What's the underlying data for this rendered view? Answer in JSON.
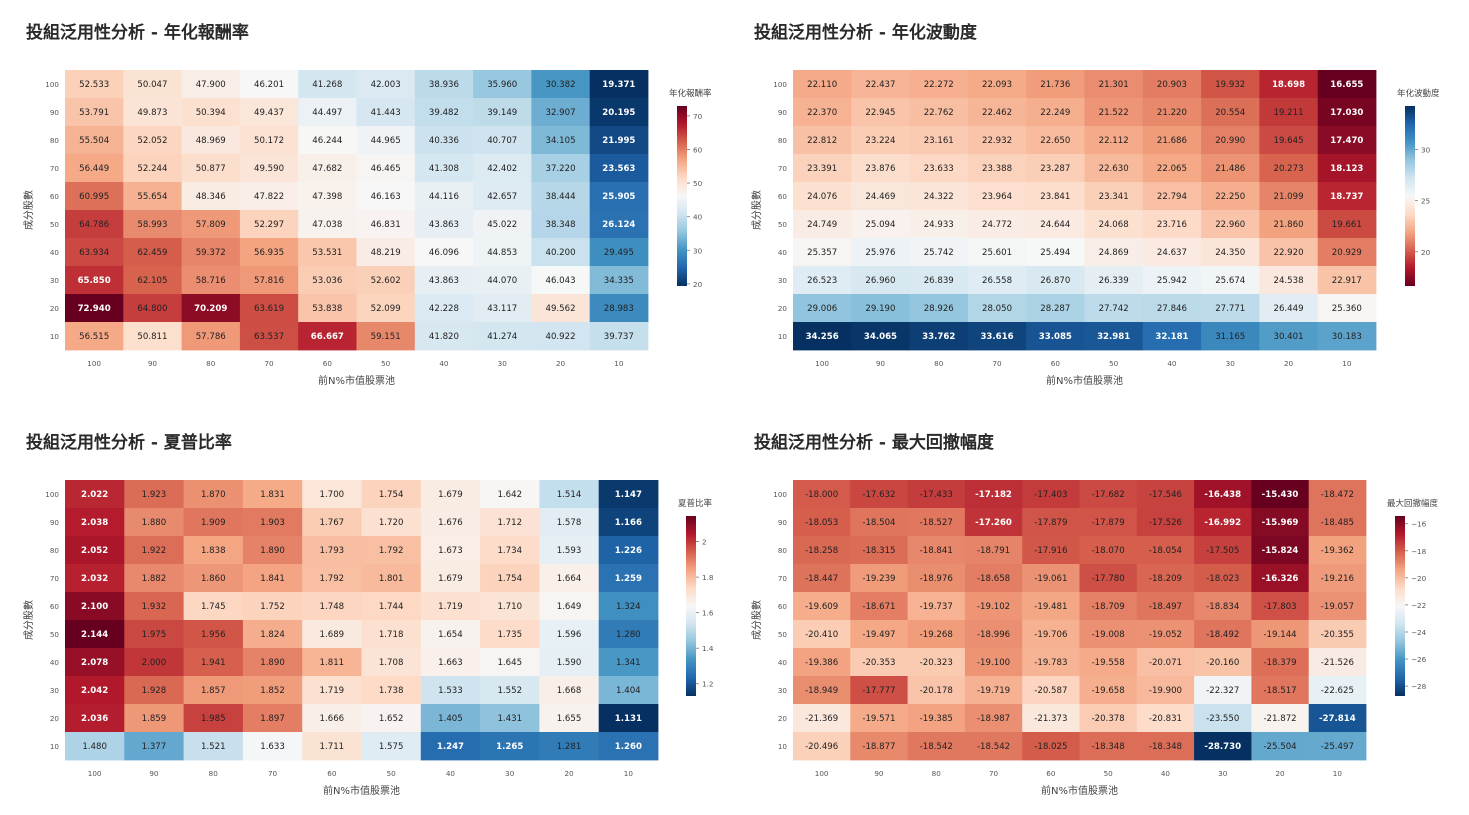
{
  "common": {
    "xlabel": "前N%市值股票池",
    "ylabel": "成分股數",
    "x_ticks": [
      "100",
      "90",
      "80",
      "70",
      "60",
      "50",
      "40",
      "30",
      "20",
      "10"
    ],
    "y_ticks": [
      "100",
      "90",
      "80",
      "70",
      "60",
      "50",
      "40",
      "30",
      "20",
      "10"
    ],
    "colors": {
      "low": "#053061",
      "mid": "#f7f7f7",
      "high": "#67001f"
    }
  },
  "chart_data": [
    {
      "type": "heatmap",
      "title": "投組泛用性分析 - 年化報酬率",
      "xlabel": "前N%市值股票池",
      "ylabel": "成分股數",
      "colorbar_title": "年化報酬率",
      "colorbar_ticks": [
        "70",
        "60",
        "50",
        "40",
        "30",
        "20"
      ],
      "colorscale": "red-high",
      "zrange": [
        19.371,
        72.94
      ],
      "values": [
        [
          "52.533",
          "50.047",
          "47.900",
          "46.201",
          "41.268",
          "42.003",
          "38.936",
          "35.960",
          "30.382",
          "19.371"
        ],
        [
          "53.791",
          "49.873",
          "50.394",
          "49.437",
          "44.497",
          "41.443",
          "39.482",
          "39.149",
          "32.907",
          "20.195"
        ],
        [
          "55.504",
          "52.052",
          "48.969",
          "50.172",
          "46.244",
          "44.965",
          "40.336",
          "40.707",
          "34.105",
          "21.995"
        ],
        [
          "56.449",
          "52.244",
          "50.877",
          "49.590",
          "47.682",
          "46.465",
          "41.308",
          "42.402",
          "37.220",
          "23.563"
        ],
        [
          "60.995",
          "55.654",
          "48.346",
          "47.822",
          "47.398",
          "46.163",
          "44.116",
          "42.657",
          "38.444",
          "25.905"
        ],
        [
          "64.786",
          "58.993",
          "57.809",
          "52.297",
          "47.038",
          "46.831",
          "43.863",
          "45.022",
          "38.348",
          "26.124"
        ],
        [
          "63.934",
          "62.459",
          "59.372",
          "56.935",
          "53.531",
          "48.219",
          "46.096",
          "44.853",
          "40.200",
          "29.495"
        ],
        [
          "65.850",
          "62.105",
          "58.716",
          "57.816",
          "53.036",
          "52.602",
          "43.863",
          "44.070",
          "46.043",
          "34.335"
        ],
        [
          "72.940",
          "64.800",
          "70.209",
          "63.619",
          "53.838",
          "52.099",
          "42.228",
          "43.117",
          "49.562",
          "28.983"
        ],
        [
          "56.515",
          "50.811",
          "57.786",
          "63.537",
          "66.667",
          "59.151",
          "41.820",
          "41.274",
          "40.922",
          "39.737"
        ]
      ]
    },
    {
      "type": "heatmap",
      "title": "投組泛用性分析 - 年化波動度",
      "xlabel": "前N%市值股票池",
      "ylabel": "成分股數",
      "colorbar_title": "年化波動度",
      "colorbar_ticks": [
        "30",
        "25",
        "20"
      ],
      "colorscale": "red-low",
      "zrange": [
        16.655,
        34.256
      ],
      "values": [
        [
          "22.110",
          "22.437",
          "22.272",
          "22.093",
          "21.736",
          "21.301",
          "20.903",
          "19.932",
          "18.698",
          "16.655"
        ],
        [
          "22.370",
          "22.945",
          "22.762",
          "22.462",
          "22.249",
          "21.522",
          "21.220",
          "20.554",
          "19.211",
          "17.030"
        ],
        [
          "22.812",
          "23.224",
          "23.161",
          "22.932",
          "22.650",
          "22.112",
          "21.686",
          "20.990",
          "19.645",
          "17.470"
        ],
        [
          "23.391",
          "23.876",
          "23.633",
          "23.388",
          "23.287",
          "22.630",
          "22.065",
          "21.486",
          "20.273",
          "18.123"
        ],
        [
          "24.076",
          "24.469",
          "24.322",
          "23.964",
          "23.841",
          "23.341",
          "22.794",
          "22.250",
          "21.099",
          "18.737"
        ],
        [
          "24.749",
          "25.094",
          "24.933",
          "24.772",
          "24.644",
          "24.068",
          "23.716",
          "22.960",
          "21.860",
          "19.661"
        ],
        [
          "25.357",
          "25.976",
          "25.742",
          "25.601",
          "25.494",
          "24.869",
          "24.637",
          "24.350",
          "22.920",
          "20.929"
        ],
        [
          "26.523",
          "26.960",
          "26.839",
          "26.558",
          "26.870",
          "26.339",
          "25.942",
          "25.674",
          "24.538",
          "22.917"
        ],
        [
          "29.006",
          "29.190",
          "28.926",
          "28.050",
          "28.287",
          "27.742",
          "27.846",
          "27.771",
          "26.449",
          "25.360"
        ],
        [
          "34.256",
          "34.065",
          "33.762",
          "33.616",
          "33.085",
          "32.981",
          "32.181",
          "31.165",
          "30.401",
          "30.183"
        ]
      ]
    },
    {
      "type": "heatmap",
      "title": "投組泛用性分析 - 夏普比率",
      "xlabel": "前N%市值股票池",
      "ylabel": "成分股數",
      "colorbar_title": "夏普比率",
      "colorbar_ticks": [
        "2",
        "1.8",
        "1.6",
        "1.4",
        "1.2"
      ],
      "colorscale": "red-high",
      "zrange": [
        1.131,
        2.144
      ],
      "values": [
        [
          "2.022",
          "1.923",
          "1.870",
          "1.831",
          "1.700",
          "1.754",
          "1.679",
          "1.642",
          "1.514",
          "1.147"
        ],
        [
          "2.038",
          "1.880",
          "1.909",
          "1.903",
          "1.767",
          "1.720",
          "1.676",
          "1.712",
          "1.578",
          "1.166"
        ],
        [
          "2.052",
          "1.922",
          "1.838",
          "1.890",
          "1.793",
          "1.792",
          "1.673",
          "1.734",
          "1.593",
          "1.226"
        ],
        [
          "2.032",
          "1.882",
          "1.860",
          "1.841",
          "1.792",
          "1.801",
          "1.679",
          "1.754",
          "1.664",
          "1.259"
        ],
        [
          "2.100",
          "1.932",
          "1.745",
          "1.752",
          "1.748",
          "1.744",
          "1.719",
          "1.710",
          "1.649",
          "1.324"
        ],
        [
          "2.144",
          "1.975",
          "1.956",
          "1.824",
          "1.689",
          "1.718",
          "1.654",
          "1.735",
          "1.596",
          "1.280"
        ],
        [
          "2.078",
          "2.000",
          "1.941",
          "1.890",
          "1.811",
          "1.708",
          "1.663",
          "1.645",
          "1.590",
          "1.341"
        ],
        [
          "2.042",
          "1.928",
          "1.857",
          "1.852",
          "1.719",
          "1.738",
          "1.533",
          "1.552",
          "1.668",
          "1.404"
        ],
        [
          "2.036",
          "1.859",
          "1.985",
          "1.897",
          "1.666",
          "1.652",
          "1.405",
          "1.431",
          "1.655",
          "1.131"
        ],
        [
          "1.480",
          "1.377",
          "1.521",
          "1.633",
          "1.711",
          "1.575",
          "1.247",
          "1.265",
          "1.281",
          "1.260"
        ]
      ]
    },
    {
      "type": "heatmap",
      "title": "投組泛用性分析 - 最大回撤幅度",
      "xlabel": "前N%市值股票池",
      "ylabel": "成分股數",
      "colorbar_title": "最大回撤幅度",
      "colorbar_ticks": [
        "−16",
        "−18",
        "−20",
        "−22",
        "−24",
        "−26",
        "−28"
      ],
      "colorscale": "red-high",
      "zrange": [
        -28.73,
        -15.43
      ],
      "values": [
        [
          "-18.000",
          "-17.632",
          "-17.433",
          "-17.182",
          "-17.403",
          "-17.682",
          "-17.546",
          "-16.438",
          "-15.430",
          "-18.472"
        ],
        [
          "-18.053",
          "-18.504",
          "-18.527",
          "-17.260",
          "-17.879",
          "-17.879",
          "-17.526",
          "-16.992",
          "-15.969",
          "-18.485"
        ],
        [
          "-18.258",
          "-18.315",
          "-18.841",
          "-18.791",
          "-17.916",
          "-18.070",
          "-18.054",
          "-17.505",
          "-15.824",
          "-19.362"
        ],
        [
          "-18.447",
          "-19.239",
          "-18.976",
          "-18.658",
          "-19.061",
          "-17.780",
          "-18.209",
          "-18.023",
          "-16.326",
          "-19.216"
        ],
        [
          "-19.609",
          "-18.671",
          "-19.737",
          "-19.102",
          "-19.481",
          "-18.709",
          "-18.497",
          "-18.834",
          "-17.803",
          "-19.057"
        ],
        [
          "-20.410",
          "-19.497",
          "-19.268",
          "-18.996",
          "-19.706",
          "-19.008",
          "-19.052",
          "-18.492",
          "-19.144",
          "-20.355"
        ],
        [
          "-19.386",
          "-20.353",
          "-20.323",
          "-19.100",
          "-19.783",
          "-19.558",
          "-20.071",
          "-20.160",
          "-18.379",
          "-21.526"
        ],
        [
          "-18.949",
          "-17.777",
          "-20.178",
          "-19.719",
          "-20.587",
          "-19.658",
          "-19.900",
          "-22.327",
          "-18.517",
          "-22.625"
        ],
        [
          "-21.369",
          "-19.571",
          "-19.385",
          "-18.987",
          "-21.373",
          "-20.378",
          "-20.831",
          "-23.550",
          "-21.872",
          "-27.814"
        ],
        [
          "-20.496",
          "-18.877",
          "-18.542",
          "-18.542",
          "-18.025",
          "-18.348",
          "-18.348",
          "-28.730",
          "-25.504",
          "-25.497"
        ]
      ]
    }
  ]
}
